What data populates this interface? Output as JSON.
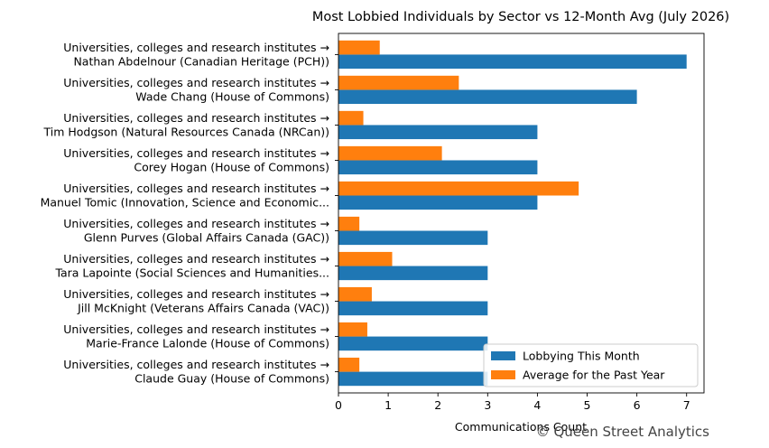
{
  "chart_data": {
    "type": "bar",
    "orientation": "horizontal",
    "title": "Most Lobbied Individuals by Sector vs 12-Month Avg (July 2026)",
    "xlabel": "Communications Count",
    "ylabel": "",
    "xlim": [
      0,
      7.35
    ],
    "x_ticks": [
      "0",
      "1",
      "2",
      "3",
      "4",
      "5",
      "6",
      "7"
    ],
    "grid": false,
    "legend_position": "lower-right",
    "categories": [
      [
        "Universities, colleges and research institutes →",
        "Nathan  Abdelnour (Canadian Heritage (PCH))"
      ],
      [
        "Universities, colleges and research institutes →",
        "Wade Chang (House of Commons)"
      ],
      [
        "Universities, colleges and research institutes →",
        "Tim Hodgson (Natural Resources Canada (NRCan))"
      ],
      [
        "Universities, colleges and research institutes →",
        "Corey Hogan (House of Commons)"
      ],
      [
        "Universities, colleges and research institutes →",
        "Manuel Tomic (Innovation, Science and Economic..."
      ],
      [
        "Universities, colleges and research institutes →",
        "Glenn Purves (Global Affairs Canada (GAC))"
      ],
      [
        "Universities, colleges and research institutes →",
        "Tara Lapointe (Social Sciences and Humanities..."
      ],
      [
        "Universities, colleges and research institutes →",
        "Jill McKnight (Veterans Affairs Canada (VAC))"
      ],
      [
        "Universities, colleges and research institutes →",
        "Marie-France Lalonde (House of Commons)"
      ],
      [
        "Universities, colleges and research institutes →",
        "Claude Guay (House of Commons)"
      ]
    ],
    "series": [
      {
        "name": "Lobbying This Month",
        "color": "#1f77b4",
        "values": [
          7,
          6,
          4,
          4,
          4,
          3,
          3,
          3,
          3,
          3
        ]
      },
      {
        "name": "Average for the Past Year",
        "color": "#ff7f0e",
        "values": [
          0.83,
          2.42,
          0.5,
          2.08,
          4.83,
          0.42,
          1.08,
          0.67,
          0.58,
          0.42
        ]
      }
    ]
  },
  "watermark": "© Queen Street Analytics"
}
